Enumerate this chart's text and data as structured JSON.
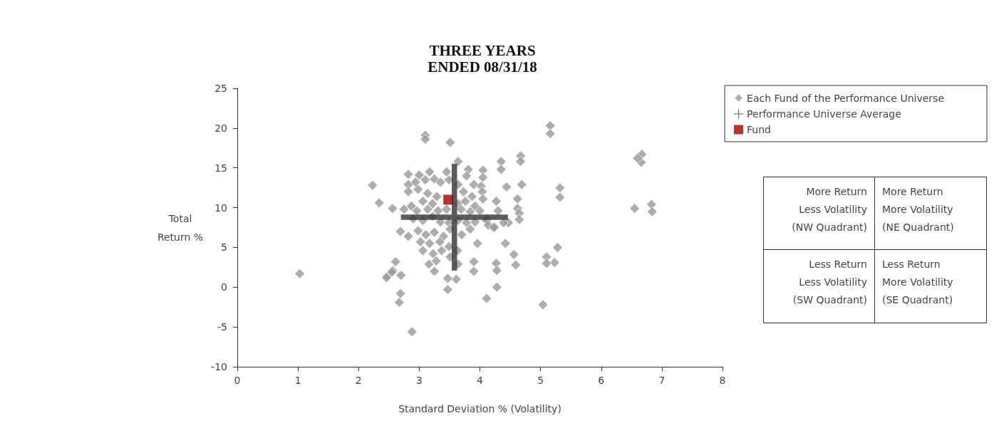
{
  "chart_data": {
    "type": "scatter",
    "title": "THREE YEARS\nENDED 08/31/18",
    "xlabel": "Standard Deviation % (Volatility)",
    "ylabel": "Total\nReturn %",
    "xlim": [
      0,
      8
    ],
    "xticks": [
      0,
      1,
      2,
      3,
      4,
      5,
      6,
      7,
      8
    ],
    "ylim": [
      -10,
      25
    ],
    "yticks": [
      -10,
      -5,
      0,
      5,
      10,
      15,
      20,
      25
    ],
    "grid": false,
    "legend": "top right",
    "series": [
      {
        "name": "Each Fund of the Performance Universe",
        "color": "#999999",
        "marker": "diamond",
        "x": [
          1.03,
          2.23,
          2.34,
          2.56,
          2.69,
          2.47,
          2.56,
          2.61,
          2.7,
          2.55,
          2.46,
          2.69,
          2.67,
          2.88,
          3.1,
          3.1,
          3.51,
          5.16,
          5.16,
          4.67,
          4.67,
          4.35,
          4.35,
          4.44,
          4.69,
          5.32,
          5.32,
          4.27,
          4.3,
          4.62,
          4.62,
          4.65,
          4.65,
          4.11,
          4.24,
          4.47,
          4.42,
          4.56,
          4.59,
          4.27,
          4.28,
          5.1,
          5.23,
          5.28,
          5.1,
          4.28,
          4.11,
          5.04,
          6.67,
          6.66,
          6.6,
          6.55,
          6.83,
          6.84,
          3.64,
          2.82,
          3.0,
          3.17,
          3.45,
          3.81,
          4.05,
          4.05,
          2.82,
          2.94,
          3.1,
          3.25,
          3.35,
          3.49,
          3.64,
          3.78,
          3.9,
          4.02,
          2.82,
          2.98,
          3.14,
          3.29,
          3.73,
          3.87,
          4.04,
          3.06,
          3.22,
          3.64,
          3.76,
          3.92,
          4.05,
          2.87,
          2.75,
          2.96,
          3.14,
          3.31,
          3.45,
          3.69,
          3.84,
          4.0,
          2.9,
          3.06,
          3.22,
          3.35,
          3.49,
          3.64,
          3.78,
          3.92,
          4.11,
          4.39,
          2.82,
          2.98,
          3.11,
          3.25,
          3.4,
          3.51,
          3.7,
          3.84,
          3.96,
          4.14,
          4.23,
          3.02,
          3.17,
          3.34,
          3.49,
          3.06,
          3.23,
          3.37,
          3.51,
          3.63,
          3.16,
          3.28,
          3.25,
          3.64,
          3.9,
          3.9,
          3.47,
          3.47,
          3.61
        ],
        "values": [
          1.7,
          12.8,
          10.6,
          9.9,
          7.0,
          1.4,
          2.1,
          3.2,
          1.5,
          1.9,
          1.2,
          -0.8,
          -1.9,
          -5.6,
          19.1,
          18.6,
          18.2,
          20.3,
          19.3,
          16.5,
          15.8,
          15.8,
          14.8,
          12.6,
          12.9,
          12.5,
          11.3,
          10.8,
          9.6,
          11.1,
          9.9,
          9.3,
          8.5,
          8.6,
          7.6,
          8.1,
          5.5,
          4.1,
          2.8,
          3.0,
          2.1,
          3.8,
          3.1,
          5.0,
          3.0,
          0.0,
          -1.4,
          -2.2,
          16.7,
          15.7,
          16.2,
          9.9,
          10.4,
          9.5,
          15.8,
          14.2,
          14.1,
          14.5,
          14.5,
          14.8,
          14.7,
          13.8,
          12.9,
          13.2,
          13.5,
          13.6,
          13.2,
          13.5,
          12.9,
          14.0,
          12.9,
          12.7,
          12.0,
          12.3,
          11.8,
          11.4,
          12.0,
          11.4,
          12.0,
          10.8,
          10.5,
          10.5,
          10.8,
          10.2,
          11.1,
          10.2,
          9.8,
          9.6,
          9.8,
          9.6,
          9.8,
          9.8,
          9.5,
          9.6,
          8.6,
          8.4,
          8.9,
          8.2,
          8.1,
          8.4,
          8.1,
          8.2,
          8.4,
          8.1,
          6.4,
          7.1,
          6.6,
          6.9,
          6.4,
          7.3,
          6.6,
          7.3,
          5.5,
          7.8,
          7.5,
          5.7,
          5.5,
          5.7,
          5.1,
          4.6,
          4.2,
          4.6,
          3.8,
          4.6,
          2.9,
          3.3,
          2.0,
          2.9,
          3.2,
          2.0,
          1.1,
          -0.3,
          1.0
        ]
      },
      {
        "name": "Performance Universe Average",
        "color": "#333333",
        "marker": "cross",
        "x": [
          3.58
        ],
        "values": [
          8.8
        ]
      },
      {
        "name": "Fund",
        "color": "#a00000",
        "marker": "square",
        "x": [
          3.48
        ],
        "values": [
          11.0
        ]
      }
    ],
    "annotations": [
      "More Return\nLess Volatility\n(NW Quadrant)",
      "More Return\nMore Volatility\n(NE Quadrant)",
      "Less Return\nLess Volatility\n(SW Quadrant)",
      "Less Return\nMore Volatility\n(SE Quadrant)"
    ]
  }
}
